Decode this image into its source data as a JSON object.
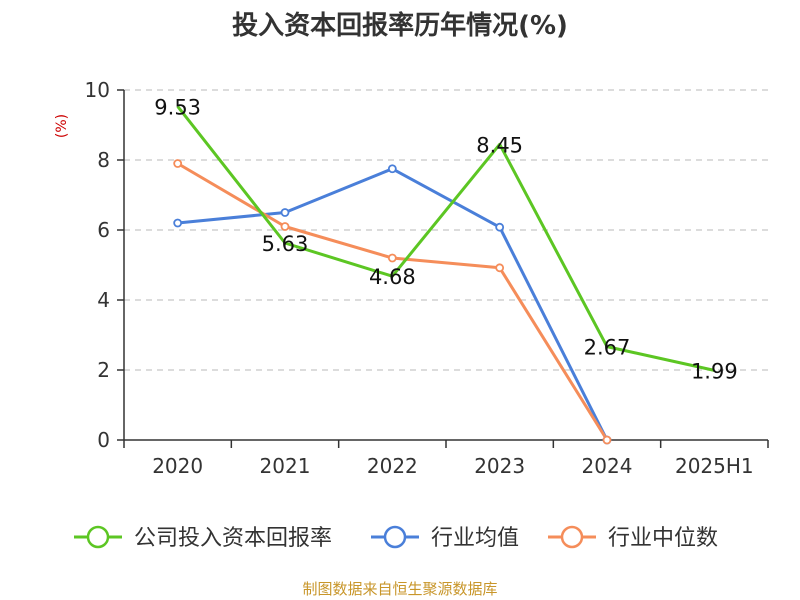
{
  "chart_data": {
    "type": "line",
    "title": "投入资本回报率历年情况(%)",
    "ylabel": "(%)",
    "xlabel": "",
    "categories": [
      "2020",
      "2021",
      "2022",
      "2023",
      "2024",
      "2025H1"
    ],
    "ylim": [
      0,
      10
    ],
    "yticks": [
      0,
      2,
      4,
      6,
      8,
      10
    ],
    "grid": true,
    "legend_position": "bottom",
    "series": [
      {
        "name": "公司投入资本回报率",
        "color": "#5cc623",
        "values": [
          9.53,
          5.63,
          4.68,
          8.45,
          2.67,
          1.99
        ],
        "data_labels": [
          "9.53",
          "5.63",
          "4.68",
          "8.45",
          "2.67",
          "1.99"
        ]
      },
      {
        "name": "行业均值",
        "color": "#4a7fd9",
        "values": [
          6.2,
          6.5,
          7.75,
          6.08,
          0.0,
          null
        ]
      },
      {
        "name": "行业中位数",
        "color": "#f58d5a",
        "values": [
          7.9,
          6.1,
          5.2,
          4.92,
          0.0,
          null
        ]
      }
    ]
  },
  "source": "制图数据来自恒生聚源数据库"
}
